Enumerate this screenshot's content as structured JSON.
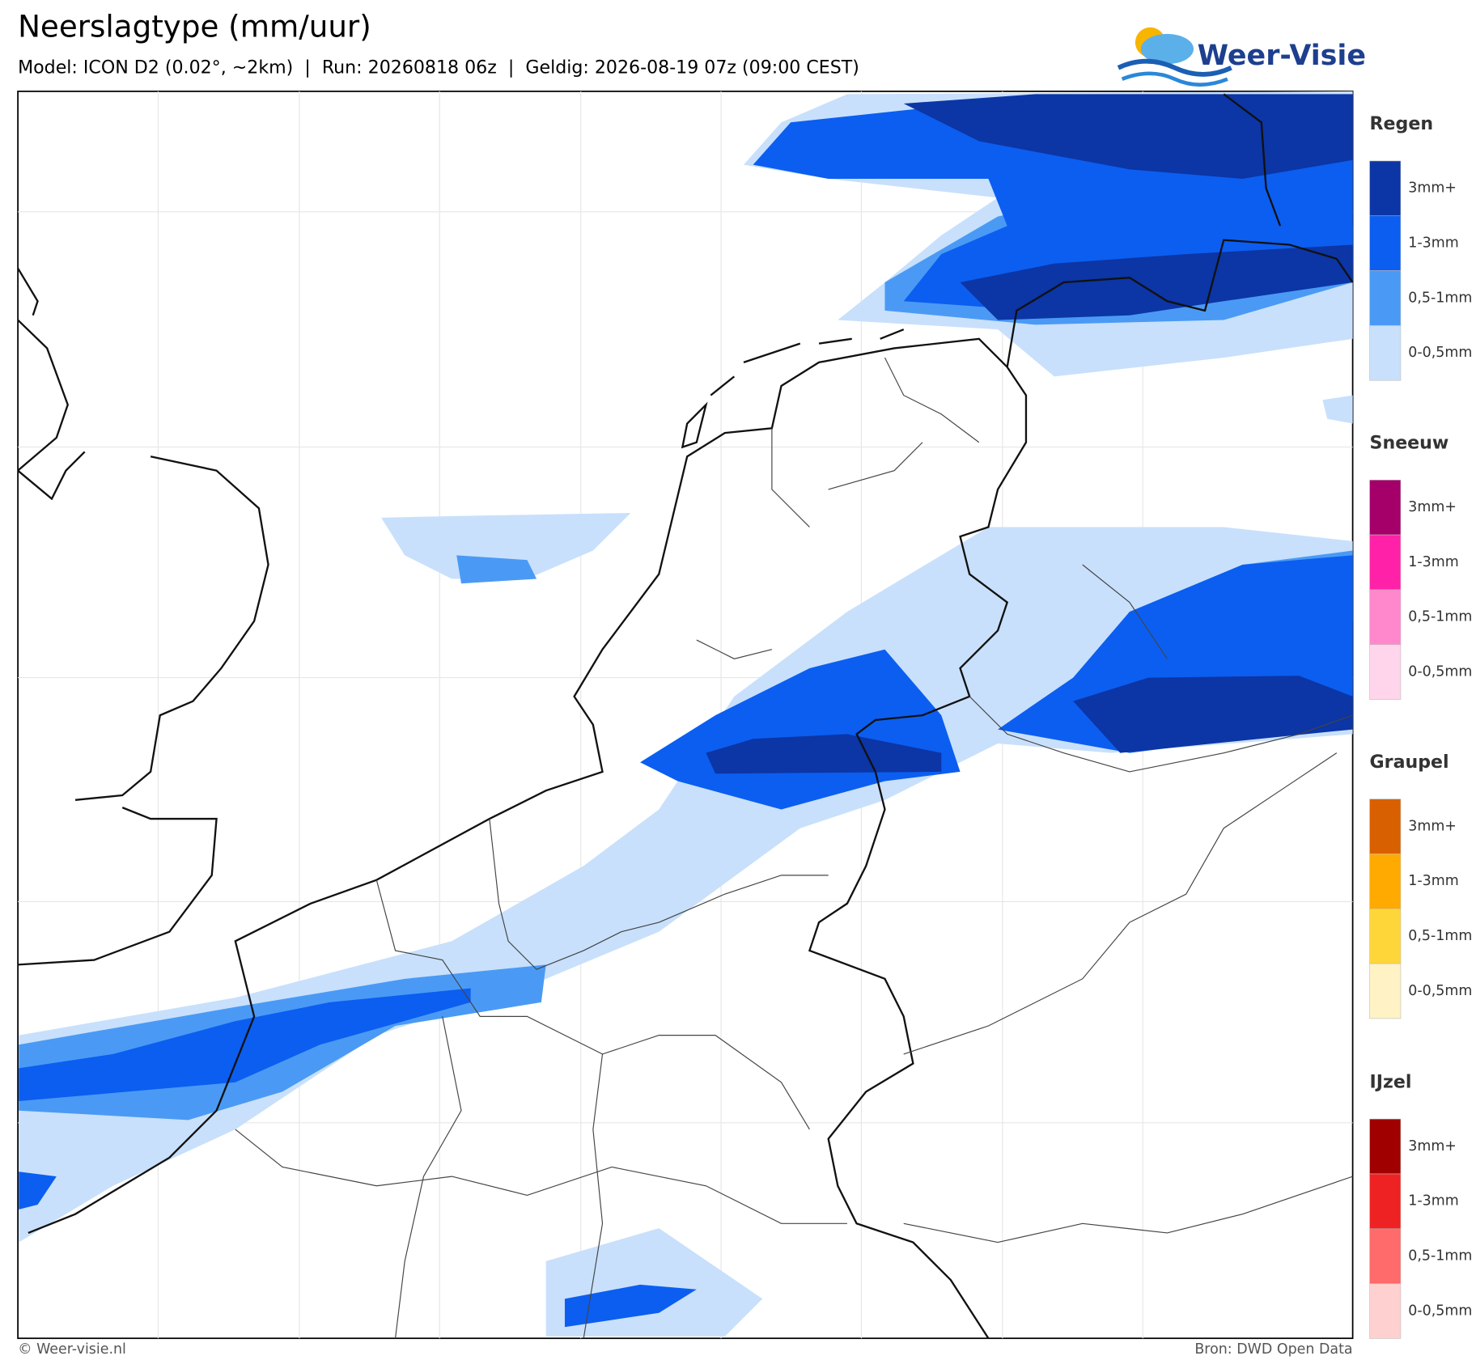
{
  "header": {
    "title": "Neerslagtype (mm/uur)",
    "subtitle": "Model: ICON D2 (0.02°, ~2km)  |  Run: 20260818 06z  |  Geldig: 2026-08-19 07z (09:00 CEST)",
    "logo": "Weer-Visie"
  },
  "legend": [
    {
      "title": "Regen",
      "items": [
        {
          "label": "3mm+",
          "color": "#0c35a5"
        },
        {
          "label": "1-3mm",
          "color": "#0b5ef0"
        },
        {
          "label": "0,5-1mm",
          "color": "#4a9af5"
        },
        {
          "label": "0-0,5mm",
          "color": "#c8e0fb"
        }
      ]
    },
    {
      "title": "Sneeuw",
      "items": [
        {
          "label": "3mm+",
          "color": "#a5006a"
        },
        {
          "label": "1-3mm",
          "color": "#ff22a8"
        },
        {
          "label": "0,5-1mm",
          "color": "#ff88cc"
        },
        {
          "label": "0-0,5mm",
          "color": "#ffd5ec"
        }
      ]
    },
    {
      "title": "Graupel",
      "items": [
        {
          "label": "3mm+",
          "color": "#d96000"
        },
        {
          "label": "1-3mm",
          "color": "#ffaa00"
        },
        {
          "label": "0,5-1mm",
          "color": "#ffd63a"
        },
        {
          "label": "0-0,5mm",
          "color": "#fff2c5"
        }
      ]
    },
    {
      "title": "IJzel",
      "items": [
        {
          "label": "3mm+",
          "color": "#a00000"
        },
        {
          "label": "1-3mm",
          "color": "#ee2222"
        },
        {
          "label": "0,5-1mm",
          "color": "#ff6a6a"
        },
        {
          "label": "0-0,5mm",
          "color": "#ffd0d0"
        }
      ]
    }
  ],
  "footer": {
    "left": "© Weer-visie.nl",
    "right": "Bron: DWD Open Data"
  }
}
